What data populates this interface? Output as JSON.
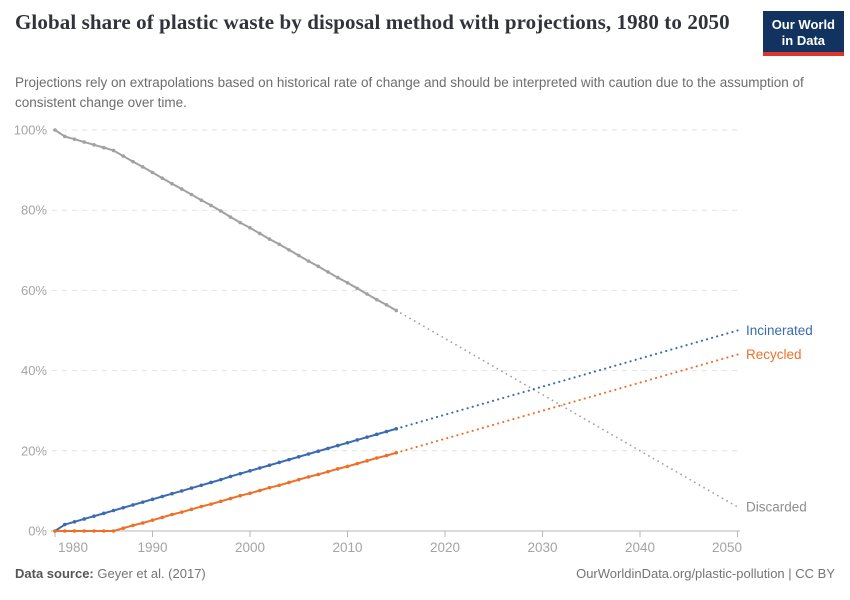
{
  "header": {
    "title": "Global share of plastic waste by disposal method with projections, 1980 to 2050",
    "subtitle": "Projections rely on extrapolations based on historical rate of change and should be interpreted with caution due to the assumption of consistent change over time.",
    "logo": {
      "line1": "Our World",
      "line2": "in Data",
      "bg_color": "#12325f",
      "accent_color": "#dc352c"
    }
  },
  "footer": {
    "data_source_label": "Data source:",
    "data_source_value": "Geyer et al. (2017)",
    "credit": "OurWorldinData.org/plastic-pollution | CC BY"
  },
  "chart_data": {
    "type": "line",
    "title": "Global share of plastic waste by disposal method with projections, 1980 to 2050",
    "xlabel": "",
    "ylabel": "",
    "x_axis": {
      "range": [
        1980,
        2050
      ],
      "ticks": [
        1980,
        1990,
        2000,
        2010,
        2020,
        2030,
        2040,
        2050
      ],
      "tick_labels": [
        "1980",
        "1990",
        "2000",
        "2010",
        "2020",
        "2030",
        "2040",
        "2050"
      ]
    },
    "y_axis": {
      "range": [
        0,
        100
      ],
      "ticks": [
        0,
        20,
        40,
        60,
        80,
        100
      ],
      "tick_labels": [
        "0%",
        "20%",
        "40%",
        "60%",
        "80%",
        "100%"
      ],
      "grid": "dashed horizontal gridlines, solid baseline at 0%"
    },
    "historical_years": [
      1980,
      1981,
      1982,
      1983,
      1984,
      1985,
      1986,
      1987,
      1988,
      1989,
      1990,
      1991,
      1992,
      1993,
      1994,
      1995,
      1996,
      1997,
      1998,
      1999,
      2000,
      2001,
      2002,
      2003,
      2004,
      2005,
      2006,
      2007,
      2008,
      2009,
      2010,
      2011,
      2012,
      2013,
      2014,
      2015
    ],
    "style_note": "solid lines with yearly dot markers = historical 1980-2015; dotted lines = projections 2015-2050; labels at right line ends",
    "series": [
      {
        "name": "Discarded",
        "color": "#a1a1a1",
        "label_color": "#8e8e8e",
        "historical_values": [
          100,
          98.4,
          97.7,
          97,
          96.3,
          95.6,
          94.9,
          93.5,
          92.1,
          90.8,
          89.4,
          88,
          86.6,
          85.3,
          83.9,
          82.5,
          81.2,
          79.8,
          78.3,
          76.9,
          75.6,
          74.2,
          72.8,
          71.5,
          70.1,
          68.7,
          67.3,
          66,
          64.6,
          63.2,
          61.9,
          60.5,
          59.1,
          57.7,
          56.4,
          55
        ],
        "projection": {
          "years": [
            2015,
            2050
          ],
          "values": [
            55,
            6
          ]
        }
      },
      {
        "name": "Incinerated",
        "color": "#3a6bb0",
        "label_color": "#3a6bb0",
        "historical_values": [
          0,
          1.6,
          2.3,
          3,
          3.7,
          4.4,
          5.1,
          5.8,
          6.5,
          7.2,
          7.9,
          8.6,
          9.3,
          10,
          10.7,
          11.4,
          12.1,
          12.8,
          13.6,
          14.3,
          15,
          15.7,
          16.4,
          17.1,
          17.8,
          18.5,
          19.2,
          19.9,
          20.6,
          21.3,
          22,
          22.7,
          23.4,
          24.1,
          24.8,
          25.5
        ],
        "projection": {
          "years": [
            2015,
            2050
          ],
          "values": [
            25.5,
            50
          ]
        }
      },
      {
        "name": "Recycled",
        "color": "#ee7028",
        "label_color": "#ee7028",
        "historical_values": [
          0,
          0,
          0,
          0,
          0,
          0,
          0,
          0.7,
          1.4,
          2,
          2.7,
          3.4,
          4.1,
          4.7,
          5.4,
          6.1,
          6.7,
          7.4,
          8.1,
          8.8,
          9.4,
          10.1,
          10.8,
          11.4,
          12.1,
          12.8,
          13.5,
          14.1,
          14.8,
          15.5,
          16.1,
          16.8,
          17.5,
          18.2,
          18.8,
          19.5
        ],
        "projection": {
          "years": [
            2015,
            2050
          ],
          "values": [
            19.5,
            44
          ]
        }
      }
    ]
  }
}
